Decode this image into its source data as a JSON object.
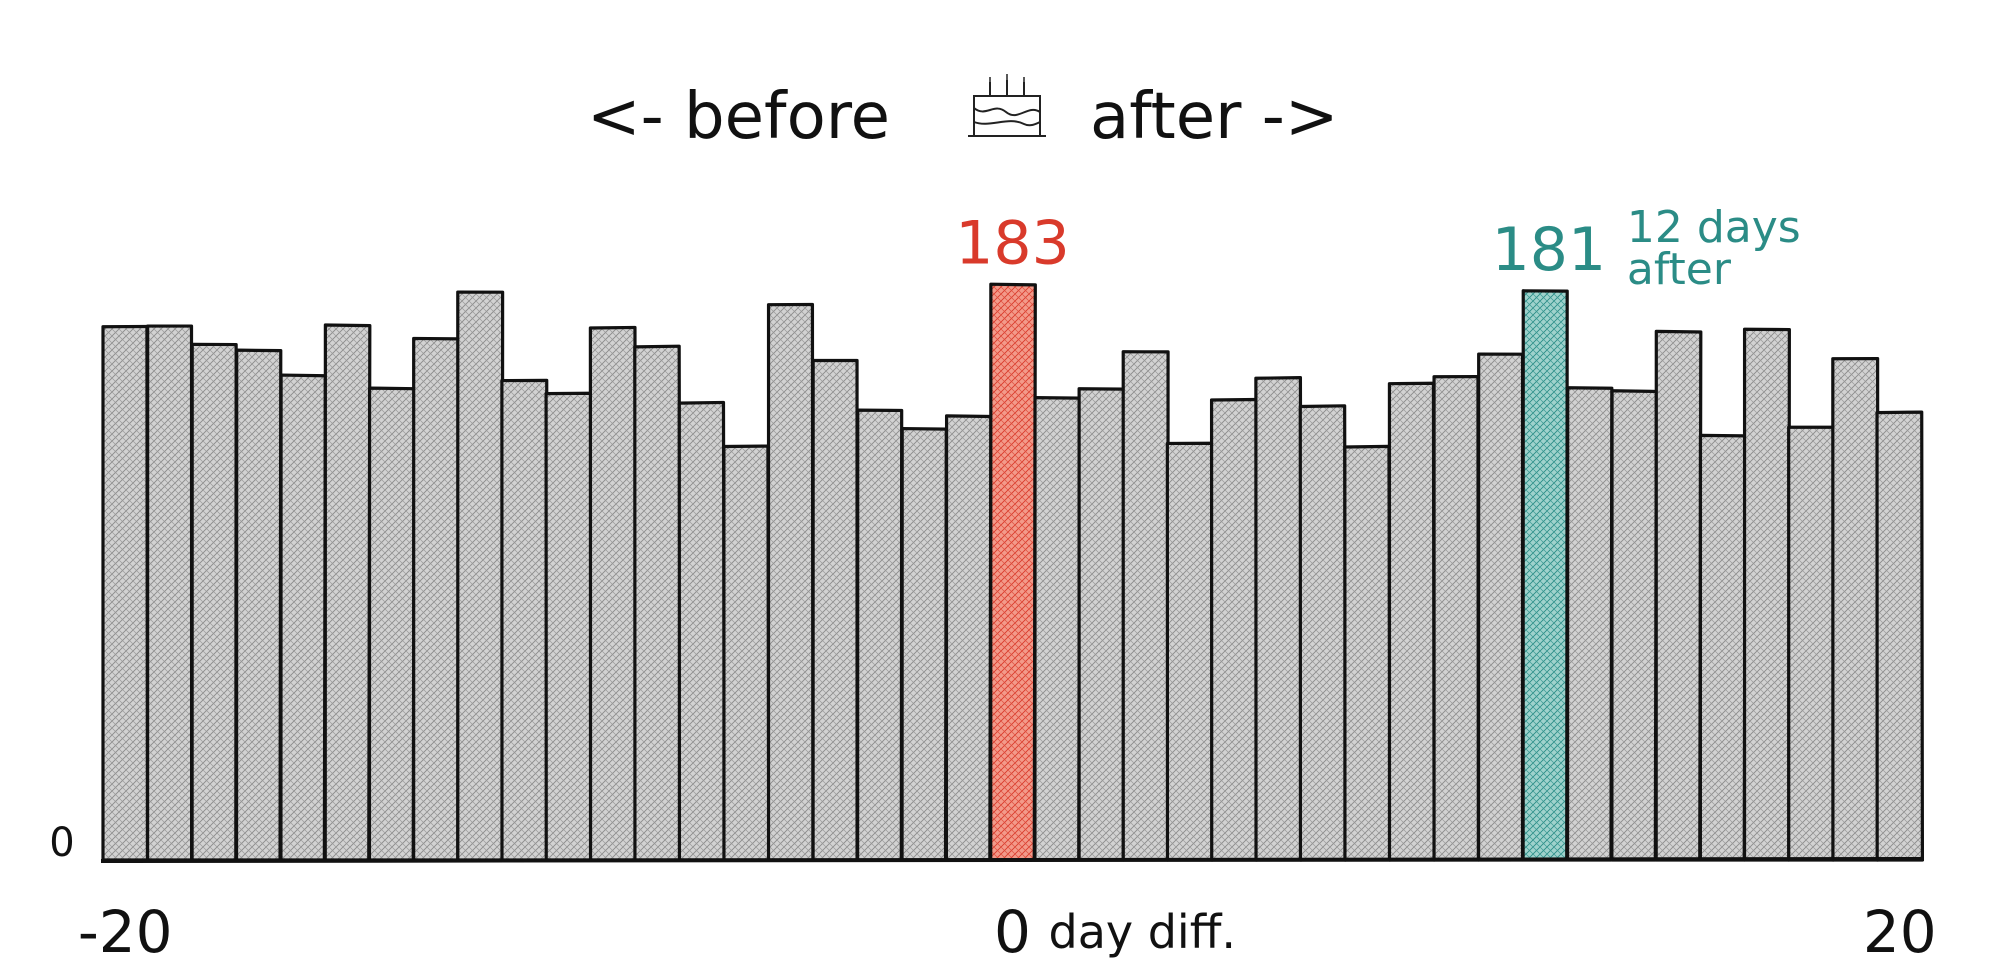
{
  "chart_data": {
    "type": "bar",
    "title": {
      "before": "<- before",
      "after": "after ->",
      "icon": "birthday-cake-icon"
    },
    "xlabel": "day diff.",
    "x_ticks": [
      {
        "value": -20,
        "label": "-20"
      },
      {
        "value": 0,
        "label": "0"
      },
      {
        "value": 20,
        "label": "20"
      }
    ],
    "y_tick_zero": "0",
    "xlim": [
      -20.5,
      20.5
    ],
    "ylim": [
      0,
      195
    ],
    "x": [
      -20,
      -19,
      -18,
      -17,
      -16,
      -15,
      -14,
      -13,
      -12,
      -11,
      -10,
      -9,
      -8,
      -7,
      -6,
      -5,
      -4,
      -3,
      -2,
      -1,
      0,
      1,
      2,
      3,
      4,
      5,
      6,
      7,
      8,
      9,
      10,
      11,
      12,
      13,
      14,
      15,
      16,
      17,
      18,
      19,
      20
    ],
    "values": [
      170,
      170,
      164,
      162,
      154,
      170,
      150,
      166,
      181,
      153,
      149,
      170,
      164,
      146,
      132,
      177,
      159,
      143,
      137,
      141,
      183,
      147,
      150,
      162,
      133,
      147,
      154,
      145,
      132,
      152,
      154,
      161,
      181,
      150,
      149,
      168,
      135,
      169,
      138,
      160,
      143
    ],
    "highlights": [
      {
        "x": 0,
        "label": "183",
        "color": "#d93a2b",
        "fill": "#f18b7a"
      },
      {
        "x": 12,
        "label": "181",
        "color": "#2b8c86",
        "fill": "#8fcac4",
        "note_line1": "12 days",
        "note_line2": "after"
      }
    ],
    "bar_color": "#cfcfcf",
    "edge_color": "#111111"
  }
}
